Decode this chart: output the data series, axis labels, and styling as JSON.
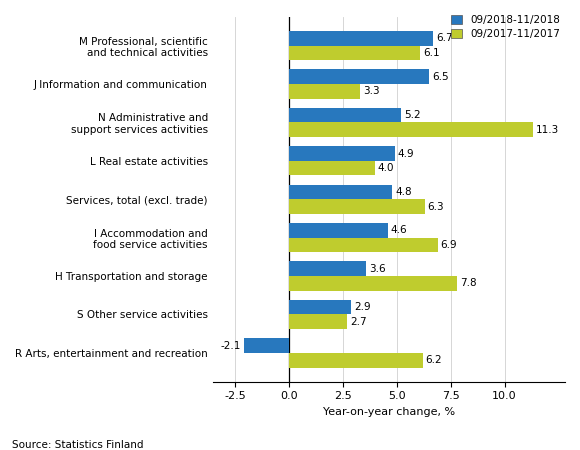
{
  "categories": [
    "M Professional, scientific\nand technical activities",
    "J Information and communication",
    "N Administrative and\nsupport services activities",
    "L Real estate activities",
    "Services, total (excl. trade)",
    "I Accommodation and\nfood service activities",
    "H Transportation and storage",
    "S Other service activities",
    "R Arts, entertainment and recreation"
  ],
  "values_2018": [
    6.7,
    6.5,
    5.2,
    4.9,
    4.8,
    4.6,
    3.6,
    2.9,
    -2.1
  ],
  "values_2017": [
    6.1,
    3.3,
    11.3,
    4.0,
    6.3,
    6.9,
    7.8,
    2.7,
    6.2
  ],
  "color_2018": "#2878BE",
  "color_2017": "#BFCC2E",
  "legend_2018": "09/2018-11/2018",
  "legend_2017": "09/2017-11/2017",
  "xlabel": "Year-on-year change, %",
  "xlim": [
    -3.5,
    12.8
  ],
  "xticks": [
    -2.5,
    0.0,
    2.5,
    5.0,
    7.5,
    10.0
  ],
  "xtick_labels": [
    "-2.5",
    "0.0",
    "2.5",
    "5.0",
    "7.5",
    "10.0"
  ],
  "source": "Source: Statistics Finland",
  "bar_height": 0.38
}
